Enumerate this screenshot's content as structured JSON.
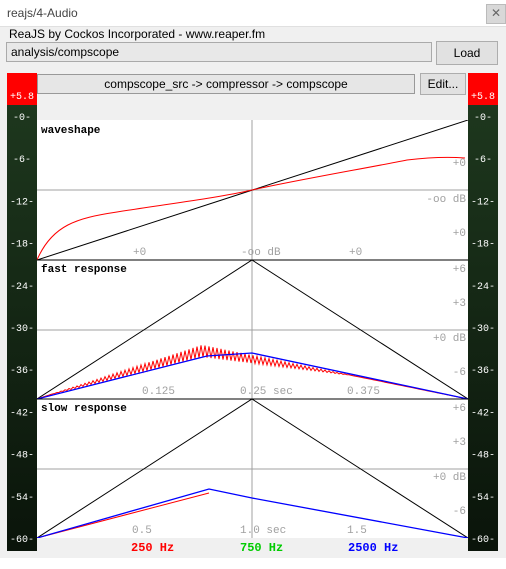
{
  "window": {
    "title": "reajs/4-Audio",
    "close_icon": "close-icon"
  },
  "plugin": {
    "subtitle": "ReaJS by Cockos Incorporated - www.reaper.fm",
    "path": "analysis/compscope",
    "load_label": "Load",
    "chain": "compscope_src -> compressor -> compscope",
    "edit_label": "Edit..."
  },
  "meters": {
    "peak_left": "+5.8",
    "peak_right": "+5.8",
    "scale": [
      "-0-",
      "-6-",
      "-12-",
      "-18-",
      "-24-",
      "-30-",
      "-36-",
      "-42-",
      "-48-",
      "-54-",
      "-60-"
    ],
    "scale_values": [
      0,
      -6,
      -12,
      -18,
      -24,
      -30,
      -36,
      -42,
      -48,
      -54,
      -60
    ],
    "peak_color": "#ff0000"
  },
  "panels": {
    "waveshape": {
      "title": "waveshape",
      "x_labels": [
        "+0",
        "-oo dB",
        "+0"
      ],
      "y_labels": [
        "+0",
        "-oo dB",
        "+0"
      ]
    },
    "fast": {
      "title": "fast response",
      "x_labels": [
        "0.125",
        "0.25 sec",
        "0.375"
      ],
      "y_labels": [
        "+6",
        "+3",
        "+0 dB",
        "-6"
      ]
    },
    "slow": {
      "title": "slow response",
      "x_labels": [
        "0.5",
        "1.0 sec",
        "1.5"
      ],
      "y_labels": [
        "+6",
        "+3",
        "+0 dB",
        "-6"
      ]
    }
  },
  "legend": [
    {
      "label": "250 Hz",
      "color": "#ff0000"
    },
    {
      "label": "750 Hz",
      "color": "#00cc00"
    },
    {
      "label": "2500 Hz",
      "color": "#0000ff"
    }
  ],
  "colors": {
    "reference": "#000000",
    "red": "#ff0000",
    "blue": "#0000ff",
    "grid": "#a0a0a0",
    "label": "#a0a0a0"
  }
}
